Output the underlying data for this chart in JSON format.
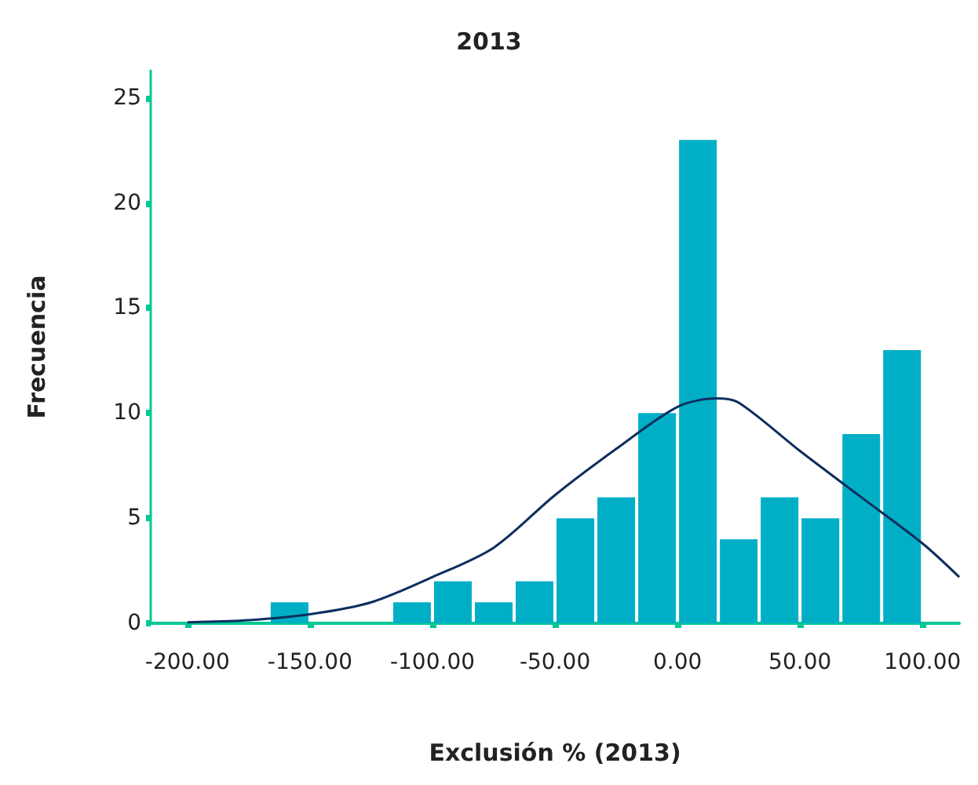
{
  "chart_data": {
    "type": "histogram",
    "title": "2013",
    "xlabel": "Exclusión % (2013)",
    "ylabel": "Frecuencia",
    "bins": [
      -166.67,
      -150,
      -133.33,
      -116.67,
      -100,
      -83.33,
      -66.67,
      -50,
      -33.33,
      -16.67,
      0,
      16.67,
      33.33,
      50,
      66.67,
      83.33,
      100
    ],
    "values": [
      1,
      0,
      0,
      1,
      2,
      1,
      2,
      5,
      6,
      10,
      23,
      4,
      6,
      5,
      9,
      13
    ],
    "color": "#00afc6",
    "series": [
      {
        "type": "line",
        "color": "#0d2f5e",
        "x": [
          -200,
          -175,
          -150,
          -125,
          -100,
          -75,
          -50,
          -25,
          0,
          16,
          25,
          50,
          75,
          100,
          115
        ],
        "values": [
          0.05,
          0.15,
          0.43,
          1.0,
          2.2,
          3.6,
          6.1,
          8.3,
          10.3,
          10.7,
          10.5,
          8.2,
          6.0,
          3.8,
          2.2
        ]
      }
    ],
    "xlim": [
      -215,
      115
    ],
    "ylim": [
      0,
      26.3
    ],
    "xticks": [
      {
        "value": -200,
        "label": "-200.00"
      },
      {
        "value": -150,
        "label": "-150.00"
      },
      {
        "value": -100,
        "label": "-100.00"
      },
      {
        "value": -50,
        "label": "-50.00"
      },
      {
        "value": 0,
        "label": "0.00"
      },
      {
        "value": 50,
        "label": "50.00"
      },
      {
        "value": 100,
        "label": "100.00"
      }
    ],
    "yticks": [
      0,
      5,
      10,
      15,
      20,
      25
    ],
    "grid": false,
    "marker": "none"
  }
}
